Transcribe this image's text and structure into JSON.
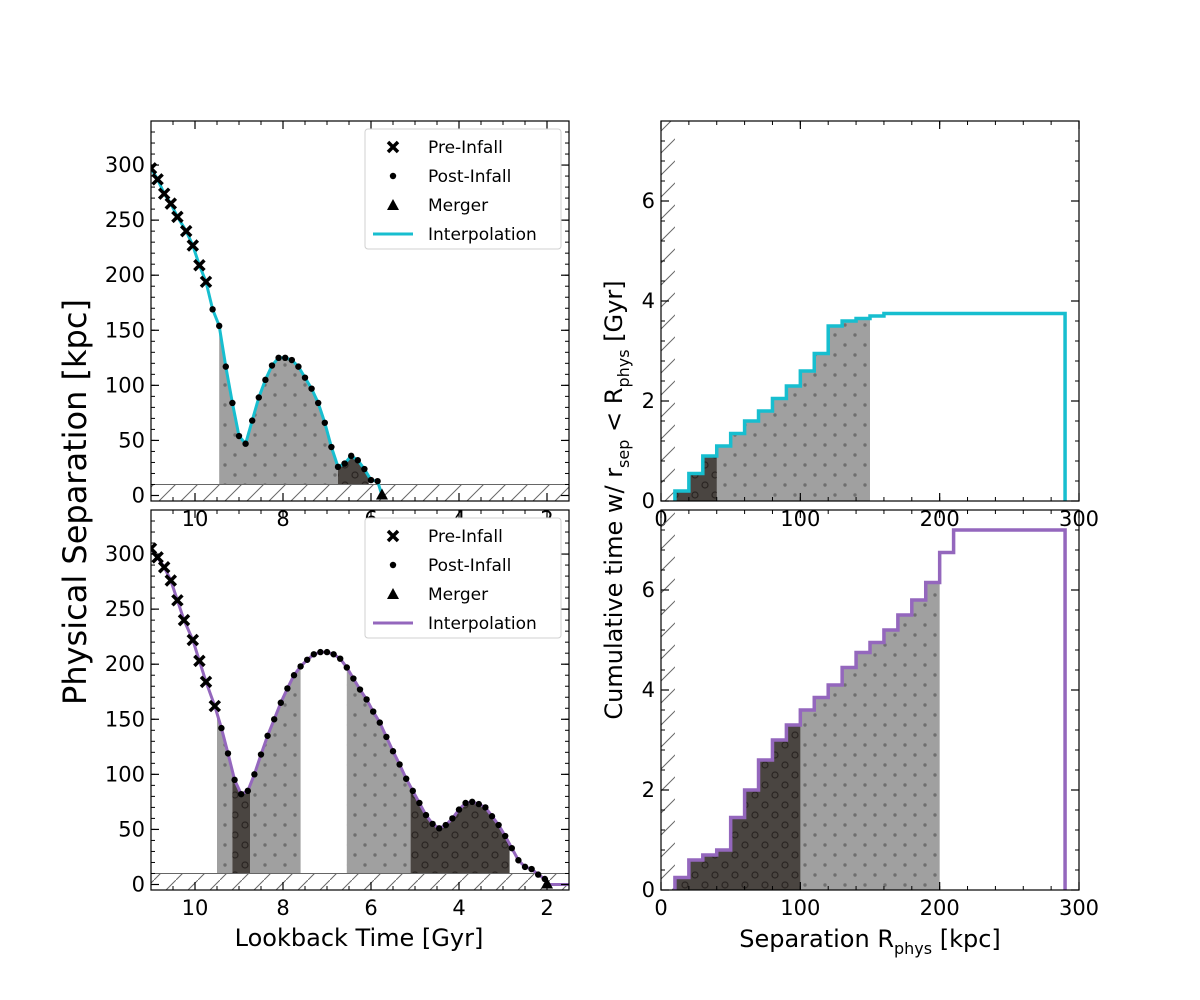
{
  "figure": {
    "xlabel_left": "Lookback Time [Gyr]",
    "ylabel_left": "Physical Separation [kpc]",
    "xlabel_right": {
      "main": "Separation R",
      "sub": "phys",
      "unit": " [kpc]"
    },
    "ylabel_right": {
      "p1": "Cumulative time w/ r",
      "s1": "sep",
      "p2": " < R",
      "s2": "phys",
      "p3": " [Gyr]"
    },
    "legend": {
      "pre_infall": "Pre-Infall",
      "post_infall": "Post-Infall",
      "merger": "Merger",
      "interpolation": "Interpolation"
    },
    "colors": {
      "top": "#17becf",
      "bottom": "#9467bd",
      "shade_light": "#a0a0a0",
      "shade_dark": "#4a4541",
      "hatch": "#666666"
    }
  },
  "chart_data": [
    {
      "panel": "top-left",
      "type": "line",
      "xlabel": "",
      "ylabel": "",
      "xlim": [
        11.0,
        1.5
      ],
      "ylim": [
        -5,
        340
      ],
      "xticks": [
        "10",
        "8",
        "6",
        "4",
        "2"
      ],
      "yticks": [
        "0",
        "50",
        "100",
        "150",
        "200",
        "250",
        "300"
      ],
      "hatch_below": 10,
      "pre_infall": {
        "x": [
          11.0,
          10.85,
          10.7,
          10.55,
          10.4,
          10.2,
          10.05,
          9.9,
          9.75
        ],
        "y": [
          297,
          287,
          274,
          265,
          253,
          240,
          227,
          209,
          194
        ]
      },
      "post_infall": {
        "x": [
          9.6,
          9.45,
          9.3,
          9.15,
          9.0,
          8.85,
          8.7,
          8.55,
          8.4,
          8.25,
          8.1,
          7.95,
          7.8,
          7.65,
          7.5,
          7.35,
          7.2,
          7.05,
          6.9,
          6.75,
          6.6,
          6.45,
          6.3,
          6.15,
          6.0,
          5.85
        ],
        "y": [
          169,
          154,
          117,
          84,
          54,
          47,
          68,
          89,
          105,
          118,
          125,
          125,
          123,
          117,
          107,
          97,
          84,
          66,
          44,
          26,
          29,
          36,
          32,
          24,
          14,
          13
        ]
      },
      "merger": {
        "x": [
          5.75
        ],
        "y": [
          0
        ]
      },
      "interpolation": {
        "x": [
          11.0,
          10.85,
          10.7,
          10.55,
          10.4,
          10.2,
          10.05,
          9.9,
          9.75,
          9.6,
          9.45,
          9.3,
          9.15,
          9.0,
          8.85,
          8.7,
          8.55,
          8.4,
          8.25,
          8.1,
          7.95,
          7.8,
          7.65,
          7.5,
          7.35,
          7.2,
          7.05,
          6.9,
          6.75,
          6.6,
          6.45,
          6.3,
          6.15,
          6.0,
          5.85,
          5.75
        ],
        "y": [
          297,
          287,
          274,
          265,
          253,
          240,
          227,
          209,
          194,
          169,
          154,
          117,
          84,
          54,
          47,
          68,
          89,
          105,
          118,
          125,
          125,
          123,
          117,
          107,
          97,
          84,
          66,
          44,
          26,
          29,
          36,
          32,
          24,
          14,
          13,
          0
        ]
      },
      "shaded_light": [
        [
          9.45,
          6.75
        ]
      ],
      "shaded_dark": [
        [
          6.75,
          6.05
        ]
      ]
    },
    {
      "panel": "bottom-left",
      "type": "line",
      "xlabel": "Lookback Time [Gyr]",
      "ylabel": "",
      "xlim": [
        11.0,
        1.5
      ],
      "ylim": [
        -5,
        340
      ],
      "xticks": [
        "10",
        "8",
        "6",
        "4",
        "2"
      ],
      "yticks": [
        "0",
        "50",
        "100",
        "150",
        "200",
        "250",
        "300"
      ],
      "hatch_below": 10,
      "pre_infall": {
        "x": [
          11.0,
          10.85,
          10.7,
          10.55,
          10.4,
          10.25,
          10.05,
          9.9,
          9.75,
          9.55
        ],
        "y": [
          305,
          297,
          288,
          276,
          258,
          240,
          222,
          203,
          184,
          162
        ]
      },
      "post_infall": {
        "x": [
          9.4,
          9.25,
          9.1,
          8.95,
          8.8,
          8.65,
          8.5,
          8.35,
          8.2,
          8.05,
          7.9,
          7.75,
          7.6,
          7.45,
          7.3,
          7.15,
          7.0,
          6.85,
          6.7,
          6.55,
          6.4,
          6.25,
          6.1,
          5.95,
          5.8,
          5.65,
          5.5,
          5.35,
          5.2,
          5.05,
          4.9,
          4.75,
          4.6,
          4.45,
          4.3,
          4.15,
          4.0,
          3.85,
          3.7,
          3.55,
          3.4,
          3.25,
          3.1,
          2.95,
          2.8,
          2.65,
          2.5,
          2.35,
          2.2,
          2.05
        ],
        "y": [
          142,
          119,
          95,
          82,
          85,
          100,
          118,
          135,
          150,
          165,
          178,
          190,
          198,
          204,
          209,
          211,
          211,
          209,
          205,
          197,
          187,
          177,
          168,
          157,
          147,
          134,
          121,
          109,
          96,
          85,
          74,
          63,
          55,
          51,
          54,
          60,
          68,
          74,
          75,
          73,
          70,
          62,
          54,
          44,
          33,
          22,
          16,
          14,
          9,
          5
        ]
      },
      "merger": {
        "x": [
          2.0
        ],
        "y": [
          0
        ]
      },
      "interpolation": {
        "x": [
          11.0,
          10.85,
          10.7,
          10.55,
          10.4,
          10.25,
          10.05,
          9.9,
          9.75,
          9.55,
          9.4,
          9.25,
          9.1,
          8.95,
          8.8,
          8.65,
          8.5,
          8.35,
          8.2,
          8.05,
          7.9,
          7.75,
          7.6,
          7.45,
          7.3,
          7.15,
          7.0,
          6.85,
          6.7,
          6.55,
          6.4,
          6.25,
          6.1,
          5.95,
          5.8,
          5.65,
          5.5,
          5.35,
          5.2,
          5.05,
          4.9,
          4.75,
          4.6,
          4.45,
          4.3,
          4.15,
          4.0,
          3.85,
          3.7,
          3.55,
          3.4,
          3.25,
          3.1,
          2.95,
          2.8,
          2.65,
          2.5,
          2.35,
          2.2,
          2.05,
          2.0,
          1.5
        ],
        "y": [
          305,
          297,
          288,
          276,
          258,
          240,
          222,
          203,
          184,
          162,
          142,
          119,
          95,
          82,
          85,
          100,
          118,
          135,
          150,
          165,
          178,
          190,
          198,
          204,
          209,
          211,
          211,
          209,
          205,
          197,
          187,
          177,
          168,
          157,
          147,
          134,
          121,
          109,
          96,
          85,
          74,
          63,
          55,
          51,
          54,
          60,
          68,
          74,
          75,
          73,
          70,
          62,
          54,
          44,
          33,
          22,
          16,
          14,
          9,
          5,
          0,
          0
        ]
      },
      "shaded_light": [
        [
          9.5,
          9.15
        ],
        [
          8.75,
          7.6
        ],
        [
          6.55,
          5.1
        ]
      ],
      "shaded_dark": [
        [
          9.15,
          8.75
        ],
        [
          5.1,
          2.85
        ]
      ]
    },
    {
      "panel": "top-right",
      "type": "area",
      "xlabel": "",
      "ylabel": "",
      "xlim": [
        0,
        300
      ],
      "ylim": [
        0,
        7.6
      ],
      "xticks": [
        "0",
        "100",
        "200",
        "300"
      ],
      "yticks": [
        "0",
        "2",
        "4",
        "6"
      ],
      "hatch_left_of": 10,
      "step_edges": [
        10,
        20,
        30,
        40,
        50,
        60,
        70,
        80,
        90,
        100,
        110,
        120,
        130,
        140,
        150,
        160,
        170,
        180,
        190,
        200,
        210,
        220,
        230,
        240,
        250,
        260,
        270,
        280,
        290
      ],
      "step_values": [
        0.2,
        0.55,
        0.9,
        1.1,
        1.35,
        1.6,
        1.8,
        2.05,
        2.3,
        2.6,
        2.95,
        3.5,
        3.6,
        3.65,
        3.7,
        3.75,
        3.75,
        3.75,
        3.75,
        3.75,
        3.75,
        3.75,
        3.75,
        3.75,
        3.75,
        3.75,
        3.75,
        3.75
      ],
      "shaded_dark_to": 40,
      "shaded_light_to": 150
    },
    {
      "panel": "bottom-right",
      "type": "area",
      "xlabel": "",
      "ylabel": "",
      "xlim": [
        0,
        300
      ],
      "ylim": [
        0,
        7.6
      ],
      "xticks": [
        "0",
        "100",
        "200",
        "300"
      ],
      "yticks": [
        "0",
        "2",
        "4",
        "6"
      ],
      "hatch_left_of": 10,
      "step_edges": [
        10,
        20,
        30,
        40,
        50,
        60,
        70,
        80,
        90,
        100,
        110,
        120,
        130,
        140,
        150,
        160,
        170,
        180,
        190,
        200,
        210,
        220,
        230,
        240,
        250,
        260,
        270,
        280,
        290
      ],
      "step_values": [
        0.25,
        0.6,
        0.7,
        0.8,
        1.45,
        2.0,
        2.6,
        3.0,
        3.3,
        3.6,
        3.85,
        4.1,
        4.45,
        4.75,
        4.95,
        5.2,
        5.5,
        5.8,
        6.15,
        6.75,
        7.2,
        7.2,
        7.2,
        7.2,
        7.2,
        7.2,
        7.2,
        7.2
      ],
      "shaded_dark_to": 100,
      "shaded_light_to": 200
    }
  ]
}
